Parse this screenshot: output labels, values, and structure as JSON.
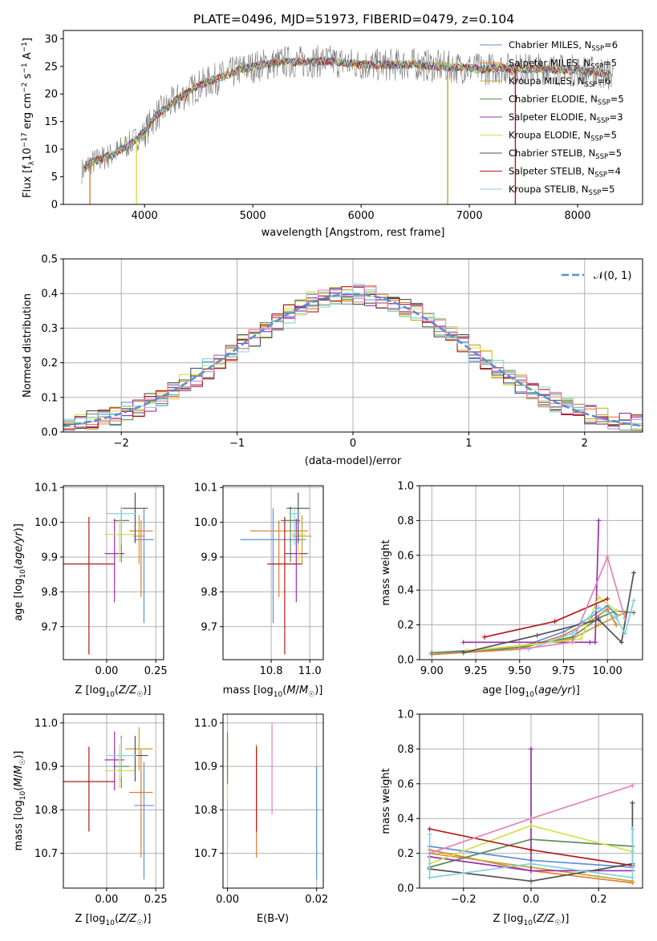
{
  "figure": {
    "title": "PLATE=0496, MJD=51973, FIBERID=0479, z=0.104"
  },
  "chart_data": [
    {
      "id": "spectrum",
      "type": "line",
      "title": "PLATE=0496, MJD=51973, FIBERID=0479, z=0.104",
      "xlabel": "wavelength [Angstrom, rest frame]",
      "ylabel": "Flux [f_λ 10^-17 erg cm^-2 s^-1 A^-1]",
      "xlim": [
        3250,
        8600
      ],
      "ylim": [
        0,
        31.5
      ],
      "xticks": [
        4000,
        5000,
        6000,
        7000,
        8000
      ],
      "yticks": [
        0,
        5,
        10,
        15,
        20,
        25,
        30
      ],
      "grid": false,
      "legend_position": "top-right",
      "continuum": {
        "x": [
          3420,
          3500,
          3700,
          3900,
          4000,
          4100,
          4300,
          4500,
          4700,
          4900,
          5100,
          5300,
          5500,
          5700,
          5900,
          6100,
          6300,
          6500,
          6700,
          6900,
          7100,
          7300,
          7500,
          7700,
          7900,
          8100,
          8330
        ],
        "y": [
          6.0,
          7.5,
          9.0,
          11.5,
          13.0,
          16.0,
          19.0,
          21.5,
          23.0,
          24.5,
          25.3,
          25.8,
          25.8,
          26.0,
          25.5,
          25.2,
          25.3,
          25.4,
          25.0,
          24.8,
          24.5,
          24.7,
          24.5,
          24.6,
          24.3,
          24.1,
          23.5
        ]
      },
      "data_noise_amplitude": 3,
      "dips": [
        {
          "x": 3495,
          "y": 0
        },
        {
          "x": 3925,
          "y": 0
        },
        {
          "x": 6800,
          "y": 0
        },
        {
          "x": 7425,
          "y": 0
        }
      ]
    },
    {
      "id": "residuals",
      "type": "histogram",
      "xlabel": "(data-model)/error",
      "ylabel": "Normed distribution",
      "xlim": [
        -2.5,
        2.5
      ],
      "ylim": [
        0,
        0.5
      ],
      "xticks": [
        -2,
        -1,
        0,
        1,
        2
      ],
      "yticks": [
        0.0,
        0.1,
        0.2,
        0.3,
        0.4,
        0.5
      ],
      "grid": true,
      "legend": {
        "label": "𝒩(0, 1)",
        "position": "top-right"
      },
      "bin_width": 0.1,
      "bin_start": -2.5
    },
    {
      "id": "z-age",
      "type": "errorbar",
      "xlabel": "Z [log10(Z/Z☉)]",
      "ylabel": "age  [log10(age/yr)]",
      "xlim": [
        -0.22,
        0.29
      ],
      "ylim": [
        9.605,
        10.105
      ],
      "xticks": [
        0.0,
        0.25
      ],
      "yticks": [
        9.7,
        9.8,
        9.9,
        10.0,
        10.1
      ],
      "grid": true,
      "points": [
        {
          "x": 0.19,
          "y": 9.95,
          "xerr": 0.05,
          "yerr": [
            0.24,
            0.09
          ]
        },
        {
          "x": 0.175,
          "y": 9.975,
          "xerr": 0.06,
          "yerr": [
            0.19,
            0.03
          ]
        },
        {
          "x": 0.165,
          "y": 9.96,
          "xerr": 0.03,
          "yerr": [
            0.08,
            0.06
          ]
        },
        {
          "x": 0.075,
          "y": 10.005,
          "xerr": 0.04,
          "yerr": [
            0.12,
            0.04
          ]
        },
        {
          "x": 0.04,
          "y": 9.91,
          "xerr": 0.05,
          "yerr": [
            0.14,
            0.1
          ]
        },
        {
          "x": 0.065,
          "y": 9.965,
          "xerr": 0.075,
          "yerr": [
            0.08,
            0.04
          ]
        },
        {
          "x": 0.145,
          "y": 10.04,
          "xerr": 0.065,
          "yerr": [
            0.1,
            0.045
          ]
        },
        {
          "x": -0.09,
          "y": 9.88,
          "xerr": 0.13,
          "yerr": [
            0.26,
            0.135
          ]
        },
        {
          "x": 0.075,
          "y": 10.025,
          "xerr": 0.075,
          "yerr": [
            0.09,
            0.02
          ]
        }
      ]
    },
    {
      "id": "mass-age",
      "type": "errorbar",
      "xlabel": "mass [log10(M/M☉)]",
      "ylabel": "",
      "xlim": [
        10.55,
        11.07
      ],
      "ylim": [
        9.605,
        10.105
      ],
      "xticks": [
        10.8,
        11.0
      ],
      "yticks": [
        9.7,
        9.8,
        9.9,
        10.0,
        10.1
      ],
      "grid": true,
      "points": [
        {
          "x": 10.81,
          "y": 9.95,
          "xerr": 0.17,
          "yerr": [
            0.24,
            0.09
          ]
        },
        {
          "x": 10.84,
          "y": 9.975,
          "xerr": 0.15,
          "yerr": [
            0.19,
            0.03
          ]
        },
        {
          "x": 10.96,
          "y": 9.96,
          "xerr": 0.05,
          "yerr": [
            0.08,
            0.06
          ]
        },
        {
          "x": 10.9,
          "y": 10.005,
          "xerr": 0.05,
          "yerr": [
            0.12,
            0.04
          ]
        },
        {
          "x": 10.93,
          "y": 9.91,
          "xerr": 0.06,
          "yerr": [
            0.14,
            0.1
          ]
        },
        {
          "x": 10.94,
          "y": 9.965,
          "xerr": 0.04,
          "yerr": [
            0.08,
            0.04
          ]
        },
        {
          "x": 10.94,
          "y": 10.04,
          "xerr": 0.06,
          "yerr": [
            0.1,
            0.045
          ]
        },
        {
          "x": 10.87,
          "y": 9.88,
          "xerr": 0.09,
          "yerr": [
            0.26,
            0.135
          ]
        },
        {
          "x": 10.92,
          "y": 10.025,
          "xerr": 0.03,
          "yerr": [
            0.09,
            0.02
          ]
        }
      ]
    },
    {
      "id": "age-weight",
      "type": "line",
      "xlabel": "age  [log10(age/yr)]",
      "ylabel": "mass weight",
      "xlim": [
        8.93,
        10.2
      ],
      "ylim": [
        0,
        1.0
      ],
      "xticks": [
        9.0,
        9.25,
        9.5,
        9.75,
        10.0
      ],
      "yticks": [
        0.0,
        0.2,
        0.4,
        0.6,
        0.8,
        1.0
      ],
      "grid": true,
      "series": [
        {
          "x": [
            9.0,
            9.5,
            9.75,
            9.9,
            10.0,
            10.05
          ],
          "y": [
            0.03,
            0.07,
            0.16,
            0.24,
            0.31,
            0.26
          ]
        },
        {
          "x": [
            9.0,
            9.5,
            9.75,
            9.9,
            10.0,
            10.05
          ],
          "y": [
            0.03,
            0.06,
            0.14,
            0.22,
            0.29,
            0.2
          ]
        },
        {
          "x": [
            9.2,
            9.5,
            9.8,
            9.95,
            10.1
          ],
          "y": [
            0.05,
            0.08,
            0.12,
            0.2,
            0.27
          ]
        },
        {
          "x": [
            9.0,
            9.5,
            9.8,
            9.95,
            10.05,
            10.15
          ],
          "y": [
            0.04,
            0.07,
            0.13,
            0.24,
            0.28,
            0.27
          ]
        },
        {
          "x": [
            9.18,
            9.9,
            9.93,
            9.95
          ],
          "y": [
            0.1,
            0.1,
            0.1,
            0.8
          ]
        },
        {
          "x": [
            9.2,
            9.6,
            9.85,
            9.95,
            10.05
          ],
          "y": [
            0.05,
            0.09,
            0.12,
            0.36,
            0.28
          ]
        },
        {
          "x": [
            9.18,
            9.6,
            9.95,
            10.08,
            10.15
          ],
          "y": [
            0.04,
            0.14,
            0.23,
            0.1,
            0.5
          ]
        },
        {
          "x": [
            9.3,
            9.7,
            10.0
          ],
          "y": [
            0.13,
            0.22,
            0.35
          ]
        },
        {
          "x": [
            9.55,
            9.8,
            9.95,
            10.05,
            10.1,
            10.15
          ],
          "y": [
            0.06,
            0.15,
            0.3,
            0.24,
            0.15,
            0.34
          ]
        },
        {
          "x": [
            9.5,
            9.8,
            10.0,
            10.1
          ],
          "y": [
            0.06,
            0.1,
            0.59,
            0.24
          ]
        }
      ]
    },
    {
      "id": "z-mass",
      "type": "errorbar",
      "xlabel": "Z [log10(Z/Z☉)]",
      "ylabel": "mass [log10(M/M☉)]",
      "xlim": [
        -0.22,
        0.29
      ],
      "ylim": [
        10.62,
        11.02
      ],
      "xticks": [
        0.0,
        0.25
      ],
      "yticks": [
        10.7,
        10.8,
        10.9,
        11.0
      ],
      "grid": true,
      "points": [
        {
          "x": 0.19,
          "y": 10.81,
          "xerr": 0.05,
          "yerr": [
            0.17,
            0.1
          ]
        },
        {
          "x": 0.175,
          "y": 10.84,
          "xerr": 0.06,
          "yerr": [
            0.15,
            0.1
          ]
        },
        {
          "x": 0.165,
          "y": 10.94,
          "xerr": 0.07,
          "yerr": [
            0.05,
            0.05
          ]
        },
        {
          "x": 0.075,
          "y": 10.9,
          "xerr": 0.04,
          "yerr": [
            0.05,
            0.07
          ]
        },
        {
          "x": 0.04,
          "y": 10.915,
          "xerr": 0.05,
          "yerr": [
            0.07,
            0.065
          ]
        },
        {
          "x": 0.065,
          "y": 10.89,
          "xerr": 0.075,
          "yerr": [
            0.04,
            0.06
          ]
        },
        {
          "x": 0.145,
          "y": 10.925,
          "xerr": 0.065,
          "yerr": [
            0.06,
            0.045
          ]
        },
        {
          "x": -0.09,
          "y": 10.865,
          "xerr": 0.13,
          "yerr": [
            0.115,
            0.08
          ]
        },
        {
          "x": 0.075,
          "y": 10.925,
          "xerr": 0.075,
          "yerr": [
            0.05,
            0.04
          ]
        }
      ]
    },
    {
      "id": "ebv-mass",
      "type": "errorbar",
      "xlabel": "E(B-V)",
      "ylabel": "",
      "xlim": [
        -0.001,
        0.0215
      ],
      "ylim": [
        10.62,
        11.02
      ],
      "xticks": [
        0.0,
        0.02
      ],
      "yticks": [
        10.7,
        10.8,
        10.9,
        11.0
      ],
      "grid": true,
      "points": [
        {
          "x": 0.02,
          "y": 10.7,
          "xerr": 0,
          "yerr": [
            0.06,
            0.2
          ]
        },
        {
          "x": 0.0065,
          "y": 10.75,
          "xerr": 0,
          "yerr": [
            0.06,
            0.2
          ]
        },
        {
          "x": 0.0065,
          "y": 10.86,
          "xerr": 0,
          "yerr": [
            0.11,
            0.085
          ]
        },
        {
          "x": 0.01,
          "y": 10.88,
          "xerr": 0,
          "yerr": [
            0.09,
            0.12
          ]
        },
        {
          "x": 0.0,
          "y": 10.89,
          "xerr": 0,
          "yerr": [
            0.07,
            0.09
          ]
        },
        {
          "x": 0.0,
          "y": 10.92,
          "xerr": 0,
          "yerr": [
            0.06,
            0.06
          ]
        }
      ]
    },
    {
      "id": "z-weight",
      "type": "line",
      "xlabel": "Z [log10(Z/Z☉)]",
      "ylabel": "mass weight",
      "xlim": [
        -0.33,
        0.33
      ],
      "ylim": [
        0,
        1.0
      ],
      "xticks": [
        -0.2,
        0.0,
        0.2
      ],
      "yticks": [
        0.0,
        0.2,
        0.4,
        0.6,
        0.8,
        1.0
      ],
      "grid": true,
      "series": [
        {
          "x": [
            -0.3,
            0.0,
            0.3
          ],
          "y": [
            0.24,
            0.16,
            0.12
          ]
        },
        {
          "x": [
            -0.3,
            0.0,
            0.3
          ],
          "y": [
            0.22,
            0.1,
            0.03
          ]
        },
        {
          "x": [
            -0.3,
            0.0,
            0.3
          ],
          "y": [
            0.2,
            0.12,
            0.04
          ]
        },
        {
          "x": [
            -0.3,
            0.0,
            0.3
          ],
          "y": [
            0.12,
            0.28,
            0.24
          ]
        },
        {
          "x": [
            -0.3,
            0.0,
            0.0,
            0.0,
            0.3
          ],
          "y": [
            0.18,
            0.1,
            0.8,
            0.1,
            0.1
          ]
        },
        {
          "x": [
            -0.3,
            0.0,
            0.3
          ],
          "y": [
            0.14,
            0.36,
            0.21
          ]
        },
        {
          "x": [
            -0.3,
            0.0,
            0.3,
            0.3
          ],
          "y": [
            0.11,
            0.04,
            0.14,
            0.49
          ]
        },
        {
          "x": [
            -0.3,
            0.0,
            0.3
          ],
          "y": [
            0.34,
            0.22,
            0.13
          ]
        },
        {
          "x": [
            -0.3,
            -0.3,
            0.0,
            0.3,
            0.3
          ],
          "y": [
            0.31,
            0.06,
            0.14,
            0.06,
            0.34
          ]
        },
        {
          "x": [
            -0.3,
            0.0,
            0.3
          ],
          "y": [
            0.2,
            0.4,
            0.59
          ]
        }
      ]
    }
  ],
  "legend": [
    {
      "label": "Chabrier MILES, N",
      "sub": "SSP",
      "suffix": "=6",
      "color": "#5f8fd8"
    },
    {
      "label": "Salpeter MILES, N",
      "sub": "SSP",
      "suffix": "=5",
      "color": "#e07c30"
    },
    {
      "label": "Kroupa MILES, N",
      "sub": "SSP",
      "suffix": "=6",
      "color": "#c8a030"
    },
    {
      "label": "Chabrier ELODIE, N",
      "sub": "SSP",
      "suffix": "=5",
      "color": "#5b8c5a"
    },
    {
      "label": "Salpeter ELODIE, N",
      "sub": "SSP",
      "suffix": "=3",
      "color": "#9b2fae"
    },
    {
      "label": "Kroupa ELODIE, N",
      "sub": "SSP",
      "suffix": "=5",
      "color": "#d4e04a"
    },
    {
      "label": "Chabrier STELIB, N",
      "sub": "SSP",
      "suffix": "=5",
      "color": "#505050"
    },
    {
      "label": "Salpeter STELIB, N",
      "sub": "SSP",
      "suffix": "=4",
      "color": "#b01a1a"
    },
    {
      "label": "Kroupa STELIB, N",
      "sub": "SSP",
      "suffix": "=5",
      "color": "#7fd3de"
    }
  ],
  "colors": {
    "data_line": "#7a7a7a",
    "gaussian": "#5a8fd0",
    "pink": "#e283b8",
    "grid": "#b0b0b0"
  }
}
